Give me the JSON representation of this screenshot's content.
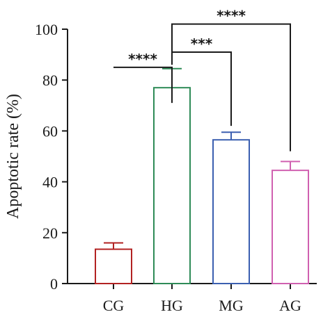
{
  "chart_data": {
    "type": "bar",
    "ylabel": "Apoptotic rate (%)",
    "ylim": [
      0,
      100
    ],
    "yticks": [
      "0",
      "20",
      "40",
      "60",
      "80",
      "100"
    ],
    "categories": [
      "CG",
      "HG",
      "MG",
      "AG"
    ],
    "values": [
      13.5,
      77,
      56.5,
      44.5
    ],
    "errors": [
      2.5,
      7.5,
      3,
      3.5
    ],
    "colors": [
      "#b22222",
      "#2e8b57",
      "#3b5fb0",
      "#d060b0"
    ],
    "significance": [
      {
        "from": "CG",
        "to": "HG",
        "label": "****",
        "y": 85
      },
      {
        "from": "HG",
        "to": "MG",
        "label": "***",
        "y": 91
      },
      {
        "from": "HG",
        "to": "AG",
        "label": "****",
        "y": 102
      }
    ],
    "grid": false
  }
}
